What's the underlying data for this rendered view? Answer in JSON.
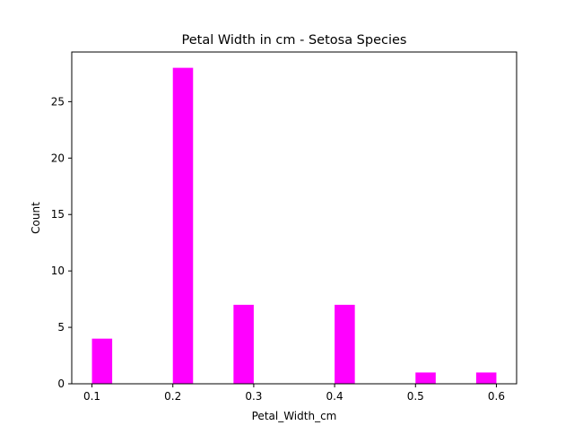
{
  "chart_data": {
    "type": "bar",
    "title": "Petal Width in cm - Setosa Species",
    "xlabel": "Petal_Width_cm",
    "ylabel": "Count",
    "xlim": [
      0.075,
      0.625
    ],
    "ylim": [
      0,
      29.4
    ],
    "xticks": [
      0.1,
      0.2,
      0.3,
      0.4,
      0.5,
      0.6
    ],
    "xtick_labels": [
      "0.1",
      "0.2",
      "0.3",
      "0.4",
      "0.5",
      "0.6"
    ],
    "yticks": [
      0,
      5,
      10,
      15,
      20,
      25
    ],
    "ytick_labels": [
      "0",
      "5",
      "10",
      "15",
      "20",
      "25"
    ],
    "bin_width": 0.025,
    "bins": [
      {
        "start": 0.1,
        "end": 0.125,
        "count": 4
      },
      {
        "start": 0.2,
        "end": 0.225,
        "count": 28
      },
      {
        "start": 0.275,
        "end": 0.3,
        "count": 7
      },
      {
        "start": 0.4,
        "end": 0.425,
        "count": 7
      },
      {
        "start": 0.5,
        "end": 0.525,
        "count": 1
      },
      {
        "start": 0.575,
        "end": 0.6,
        "count": 1
      }
    ],
    "bar_color": "#ff00ff",
    "grid": false,
    "legend": "none"
  }
}
